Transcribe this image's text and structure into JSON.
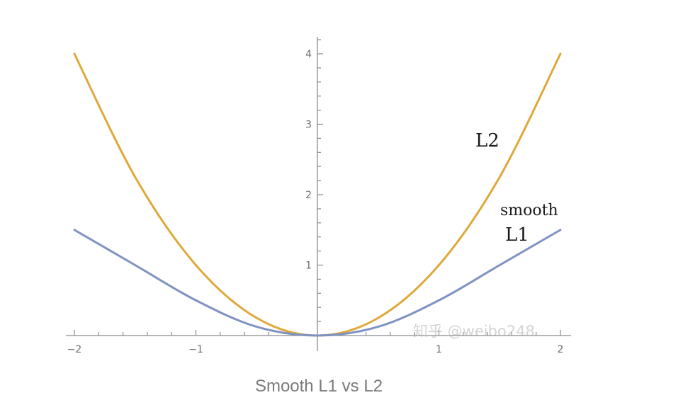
{
  "chart_data": {
    "type": "line",
    "x_range": [
      -2,
      2
    ],
    "ylim": [
      0,
      4
    ],
    "x_ticks": [
      -2,
      -1,
      1,
      2
    ],
    "x_tick_labels": [
      "−2",
      "−1",
      "1",
      "2"
    ],
    "y_ticks": [
      1,
      2,
      3,
      4
    ],
    "y_tick_labels": [
      "1",
      "2",
      "3",
      "4"
    ],
    "grid": false,
    "series": [
      {
        "name": "L2",
        "color": "#e0a83a",
        "x": [
          -2,
          -1.5,
          -1,
          -0.5,
          0,
          0.5,
          1,
          1.5,
          2
        ],
        "y": [
          4,
          2.25,
          1,
          0.25,
          0,
          0.25,
          1,
          2.25,
          4
        ]
      },
      {
        "name": "smooth L1",
        "name_lines": [
          "smooth",
          "L1"
        ],
        "color": "#7f93c2",
        "x": [
          -2,
          -1.5,
          -1,
          -0.5,
          0,
          0.5,
          1,
          1.5,
          2
        ],
        "y": [
          1.5,
          1.0,
          0.5,
          0.125,
          0,
          0.125,
          0.5,
          1.0,
          1.5
        ]
      }
    ]
  },
  "caption": "Smooth L1 vs L2",
  "watermark": "知乎 @weibo248"
}
